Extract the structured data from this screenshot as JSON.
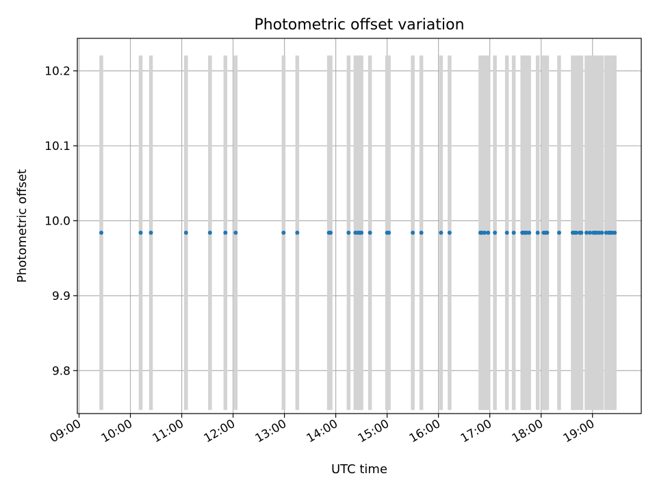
{
  "chart_data": {
    "type": "scatter",
    "title": "Photometric offset variation",
    "xlabel": "UTC time",
    "ylabel": "Photometric offset",
    "grid": true,
    "xlim": [
      "08:58",
      "19:57"
    ],
    "ylim": [
      9.7427,
      10.2434
    ],
    "x_ticks": [
      "09:00",
      "10:00",
      "11:00",
      "12:00",
      "13:00",
      "14:00",
      "15:00",
      "16:00",
      "17:00",
      "18:00",
      "19:00"
    ],
    "y_ticks": [
      "9.8",
      "9.9",
      "10.0",
      "10.1",
      "10.2"
    ],
    "y_tick_values": [
      9.8,
      9.9,
      10.0,
      10.1,
      10.2
    ],
    "marker_color": "#1f77b4",
    "band_color": "#d3d3d3",
    "band_range": [
      9.7475,
      10.2205
    ],
    "band_half_width_minutes": 2.2,
    "offset_value": 9.984,
    "x": [
      "09:26",
      "10:12",
      "10:24",
      "11:05",
      "11:33",
      "11:51",
      "12:03",
      "12:59",
      "13:15",
      "13:52",
      "13:54",
      "14:15",
      "14:23",
      "14:26",
      "14:28",
      "14:30",
      "14:40",
      "15:00",
      "15:02",
      "15:30",
      "15:40",
      "16:03",
      "16:13",
      "16:49",
      "16:51",
      "16:54",
      "16:58",
      "17:06",
      "17:20",
      "17:28",
      "17:38",
      "17:39",
      "17:41",
      "17:43",
      "17:46",
      "17:56",
      "18:03",
      "18:05",
      "18:07",
      "18:21",
      "18:37",
      "18:39",
      "18:41",
      "18:45",
      "18:47",
      "18:53",
      "18:57",
      "19:01",
      "19:03",
      "19:05",
      "19:08",
      "19:11",
      "19:16",
      "19:19",
      "19:21",
      "19:23",
      "19:26"
    ]
  }
}
